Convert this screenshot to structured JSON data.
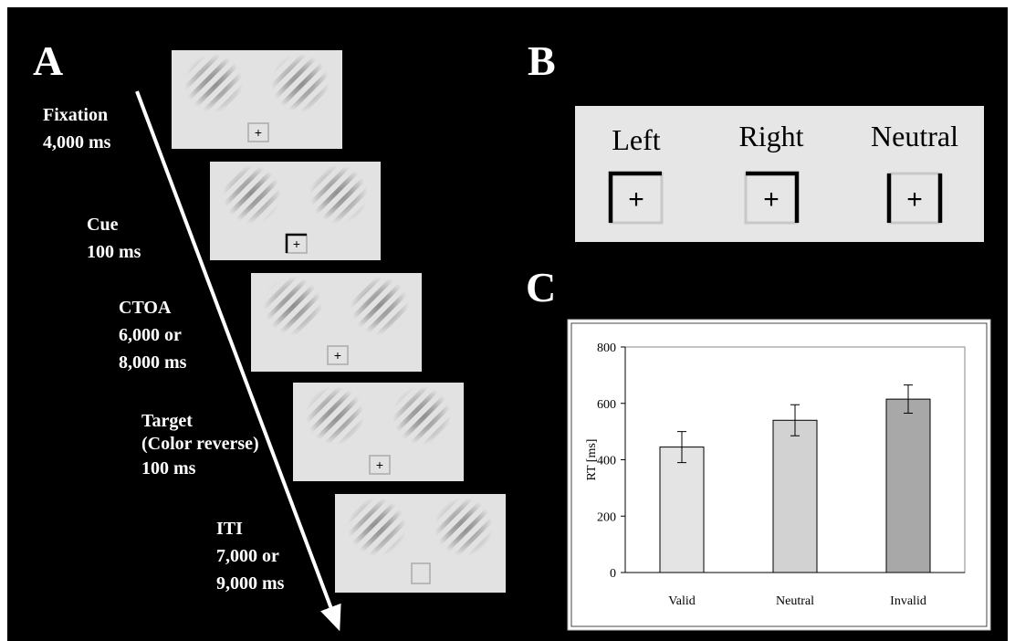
{
  "panel_a": {
    "label": "A",
    "steps": [
      {
        "lines": [
          "Fixation",
          "4,000 ms"
        ]
      },
      {
        "lines": [
          "Cue",
          "100 ms"
        ]
      },
      {
        "lines": [
          "CTOA",
          "6,000 or",
          "8,000 ms"
        ]
      },
      {
        "lines": [
          "Target",
          "(Color reverse)",
          "100 ms"
        ]
      },
      {
        "lines": [
          "ITI",
          "7,000 or",
          "9,000 ms"
        ]
      }
    ]
  },
  "panel_b": {
    "label": "B",
    "cues": [
      "Left",
      "Right",
      "Neutral"
    ]
  },
  "panel_c": {
    "label": "C"
  },
  "chart_data": {
    "type": "bar",
    "y_label": "RT [ms]",
    "categories": [
      "Valid",
      "Neutral",
      "Invalid"
    ],
    "values": [
      445,
      540,
      615
    ],
    "errors": [
      55,
      55,
      50
    ],
    "colors": [
      "#e4e4e4",
      "#d2d2d2",
      "#a8a8a8"
    ],
    "ylim": [
      0,
      800
    ],
    "yticks": [
      0,
      200,
      400,
      600,
      800
    ]
  }
}
